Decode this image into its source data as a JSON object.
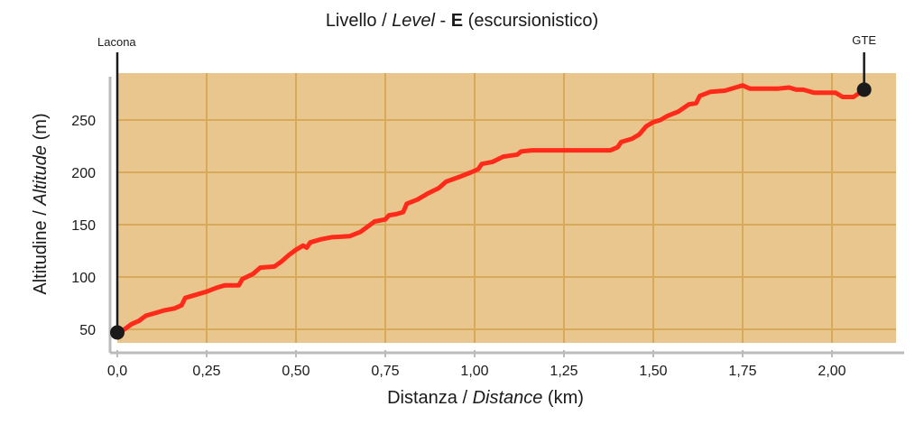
{
  "chart_data": {
    "type": "area",
    "title": {
      "part1": "Livello / ",
      "part2_italic": "Level",
      "part3": " - ",
      "part4_bold": "E",
      "part5": " (escursionistico)"
    },
    "xlabel": {
      "plain": "Distanza / ",
      "italic": "Distance",
      "unit": " (km)"
    },
    "ylabel": {
      "plain": "Altitudine / ",
      "italic": "Altitude",
      "unit": " (m)"
    },
    "xlim": [
      0,
      2.2
    ],
    "ylim": [
      40,
      290
    ],
    "x_ticks": [
      {
        "value": 0,
        "label": "0,0"
      },
      {
        "value": 0.25,
        "label": "0,25"
      },
      {
        "value": 0.5,
        "label": "0,50"
      },
      {
        "value": 0.75,
        "label": "0,75"
      },
      {
        "value": 1.0,
        "label": "1,00"
      },
      {
        "value": 1.25,
        "label": "1,25"
      },
      {
        "value": 1.5,
        "label": "1,50"
      },
      {
        "value": 1.75,
        "label": "1,75"
      },
      {
        "value": 2.0,
        "label": "2,00"
      }
    ],
    "y_ticks": [
      {
        "value": 50,
        "label": "50"
      },
      {
        "value": 100,
        "label": "100"
      },
      {
        "value": 150,
        "label": "150"
      },
      {
        "value": 200,
        "label": "200"
      },
      {
        "value": 250,
        "label": "250"
      }
    ],
    "grid": true,
    "colors": {
      "fill": "#e8c68d",
      "grid": "#d8a95a",
      "line": "#ff2a1a",
      "axis": "#bbbbbb",
      "marker": "#1a1a1a"
    },
    "endpoints": [
      {
        "label": "Lacona",
        "x": 0.0,
        "y": 47
      },
      {
        "label": "GTE",
        "x": 2.09,
        "y": 279
      }
    ],
    "points": [
      [
        0.0,
        47
      ],
      [
        0.02,
        50
      ],
      [
        0.04,
        55
      ],
      [
        0.06,
        58
      ],
      [
        0.08,
        63
      ],
      [
        0.1,
        65
      ],
      [
        0.13,
        68
      ],
      [
        0.16,
        70
      ],
      [
        0.18,
        73
      ],
      [
        0.19,
        80
      ],
      [
        0.22,
        83
      ],
      [
        0.25,
        86
      ],
      [
        0.28,
        90
      ],
      [
        0.3,
        92
      ],
      [
        0.34,
        92
      ],
      [
        0.35,
        98
      ],
      [
        0.38,
        103
      ],
      [
        0.4,
        109
      ],
      [
        0.44,
        110
      ],
      [
        0.46,
        115
      ],
      [
        0.48,
        121
      ],
      [
        0.5,
        126
      ],
      [
        0.52,
        130
      ],
      [
        0.53,
        128
      ],
      [
        0.54,
        133
      ],
      [
        0.57,
        136
      ],
      [
        0.6,
        138
      ],
      [
        0.65,
        139
      ],
      [
        0.68,
        143
      ],
      [
        0.72,
        153
      ],
      [
        0.75,
        155
      ],
      [
        0.76,
        159
      ],
      [
        0.78,
        160
      ],
      [
        0.8,
        162
      ],
      [
        0.81,
        170
      ],
      [
        0.84,
        174
      ],
      [
        0.87,
        180
      ],
      [
        0.9,
        185
      ],
      [
        0.92,
        191
      ],
      [
        0.96,
        196
      ],
      [
        0.99,
        200
      ],
      [
        1.01,
        203
      ],
      [
        1.02,
        208
      ],
      [
        1.05,
        210
      ],
      [
        1.08,
        215
      ],
      [
        1.12,
        217
      ],
      [
        1.13,
        220
      ],
      [
        1.16,
        221
      ],
      [
        1.3,
        221
      ],
      [
        1.38,
        221
      ],
      [
        1.4,
        224
      ],
      [
        1.41,
        229
      ],
      [
        1.44,
        232
      ],
      [
        1.46,
        236
      ],
      [
        1.48,
        244
      ],
      [
        1.5,
        248
      ],
      [
        1.52,
        250
      ],
      [
        1.54,
        254
      ],
      [
        1.57,
        258
      ],
      [
        1.6,
        265
      ],
      [
        1.62,
        266
      ],
      [
        1.63,
        273
      ],
      [
        1.66,
        277
      ],
      [
        1.7,
        278
      ],
      [
        1.73,
        281
      ],
      [
        1.75,
        283
      ],
      [
        1.77,
        280
      ],
      [
        1.85,
        280
      ],
      [
        1.88,
        281
      ],
      [
        1.9,
        279
      ],
      [
        1.92,
        279
      ],
      [
        1.95,
        276
      ],
      [
        2.01,
        276
      ],
      [
        2.03,
        272
      ],
      [
        2.06,
        272
      ],
      [
        2.09,
        279
      ]
    ]
  }
}
